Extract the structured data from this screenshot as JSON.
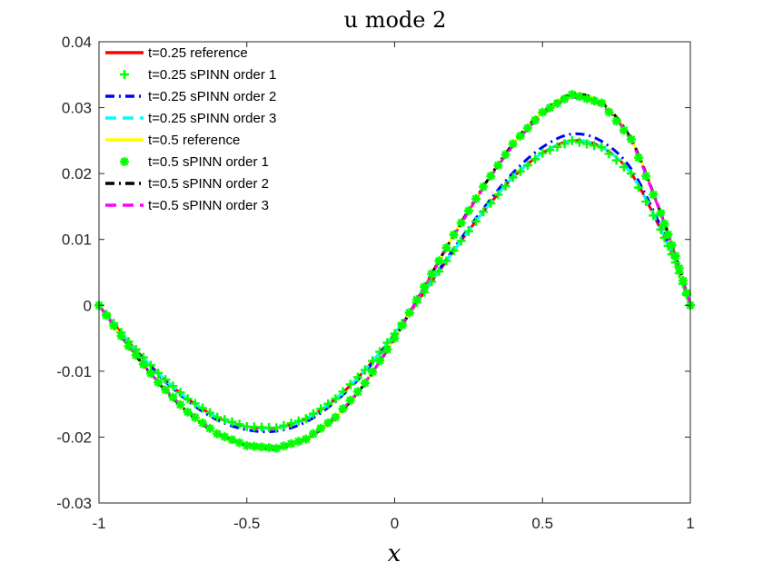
{
  "chart_data": {
    "type": "line",
    "title": "u mode 2",
    "xlabel": "x",
    "ylabel": "",
    "xlim": [
      -1,
      1
    ],
    "ylim": [
      -0.03,
      0.04
    ],
    "xticks": [
      -1,
      -0.5,
      0,
      0.5,
      1
    ],
    "xtick_labels": [
      "-1",
      "-0.5",
      "0",
      "0.5",
      "1"
    ],
    "yticks": [
      -0.03,
      -0.02,
      -0.01,
      0,
      0.01,
      0.02,
      0.03,
      0.04
    ],
    "ytick_labels": [
      "-0.03",
      "-0.02",
      "-0.01",
      "0",
      "0.01",
      "0.02",
      "0.03",
      "0.04"
    ],
    "legend_position": "top-left",
    "x": [
      -1.0,
      -0.9,
      -0.8,
      -0.7,
      -0.6,
      -0.5,
      -0.4,
      -0.3,
      -0.2,
      -0.1,
      0.0,
      0.1,
      0.2,
      0.3,
      0.4,
      0.5,
      0.6,
      0.7,
      0.8,
      0.9,
      0.95,
      1.0
    ],
    "series": [
      {
        "name": "t=0.25 reference",
        "color": "#ff0000",
        "style": "solid",
        "marker": "none",
        "values": [
          0.0,
          -0.0055,
          -0.0103,
          -0.0142,
          -0.017,
          -0.0184,
          -0.0186,
          -0.0172,
          -0.0142,
          -0.0098,
          -0.0043,
          0.002,
          0.0083,
          0.0142,
          0.0194,
          0.0231,
          0.025,
          0.024,
          0.02,
          0.0115,
          0.0065,
          0.0
        ]
      },
      {
        "name": "t=0.25 sPINN order 1",
        "color": "#00ff00",
        "style": "none",
        "marker": "plus",
        "values": [
          0.0,
          -0.0055,
          -0.0103,
          -0.0142,
          -0.017,
          -0.0184,
          -0.0186,
          -0.0172,
          -0.0142,
          -0.0098,
          -0.0043,
          0.002,
          0.0083,
          0.0142,
          0.0194,
          0.0231,
          0.025,
          0.024,
          0.02,
          0.0115,
          0.0065,
          0.0
        ]
      },
      {
        "name": "t=0.25 sPINN order 2",
        "color": "#0000ff",
        "style": "dashdot",
        "marker": "none",
        "values": [
          0.0,
          -0.0056,
          -0.0105,
          -0.0145,
          -0.0174,
          -0.0189,
          -0.0191,
          -0.0177,
          -0.0146,
          -0.0101,
          -0.0044,
          0.0021,
          0.0086,
          0.0147,
          0.0201,
          0.024,
          0.026,
          0.0249,
          0.0207,
          0.012,
          0.0068,
          0.0
        ]
      },
      {
        "name": "t=0.25 sPINN order 3",
        "color": "#00ffff",
        "style": "dashed",
        "marker": "none",
        "values": [
          0.0,
          -0.0055,
          -0.0103,
          -0.0142,
          -0.017,
          -0.0184,
          -0.0186,
          -0.0172,
          -0.0142,
          -0.0098,
          -0.0043,
          0.002,
          0.0083,
          0.0142,
          0.0194,
          0.0231,
          0.025,
          0.024,
          0.02,
          0.0115,
          0.0065,
          0.0
        ]
      },
      {
        "name": "t=0.5 reference",
        "color": "#ffff00",
        "style": "solid",
        "marker": "none",
        "values": [
          0.0,
          -0.0062,
          -0.0117,
          -0.0162,
          -0.0195,
          -0.0213,
          -0.0217,
          -0.0203,
          -0.017,
          -0.0118,
          -0.005,
          0.0028,
          0.0107,
          0.018,
          0.0245,
          0.0293,
          0.032,
          0.0307,
          0.0252,
          0.014,
          0.0075,
          0.0
        ]
      },
      {
        "name": "t=0.5 sPINN order 1",
        "color": "#00ff00",
        "style": "none",
        "marker": "asterisk",
        "values": [
          0.0,
          -0.0062,
          -0.0117,
          -0.0162,
          -0.0195,
          -0.0213,
          -0.0217,
          -0.0203,
          -0.017,
          -0.0118,
          -0.005,
          0.0028,
          0.0107,
          0.018,
          0.0245,
          0.0293,
          0.032,
          0.0307,
          0.0252,
          0.014,
          0.0075,
          0.0
        ]
      },
      {
        "name": "t=0.5 sPINN order 2",
        "color": "#000000",
        "style": "dashdot",
        "marker": "none",
        "values": [
          0.0,
          -0.0062,
          -0.0117,
          -0.0162,
          -0.0195,
          -0.0213,
          -0.0217,
          -0.0203,
          -0.017,
          -0.0118,
          -0.005,
          0.0028,
          0.0107,
          0.018,
          0.0245,
          0.0293,
          0.032,
          0.0307,
          0.0252,
          0.014,
          0.0075,
          0.0
        ]
      },
      {
        "name": "t=0.5 sPINN order 3",
        "color": "#ff00ff",
        "style": "dashed",
        "marker": "none",
        "values": [
          0.0,
          -0.0061,
          -0.0116,
          -0.016,
          -0.0193,
          -0.0211,
          -0.0215,
          -0.0201,
          -0.0168,
          -0.0117,
          -0.0049,
          0.0027,
          0.0105,
          0.0178,
          0.0242,
          0.0289,
          0.0315,
          0.0303,
          0.0249,
          0.0139,
          0.0074,
          0.0
        ]
      }
    ]
  }
}
